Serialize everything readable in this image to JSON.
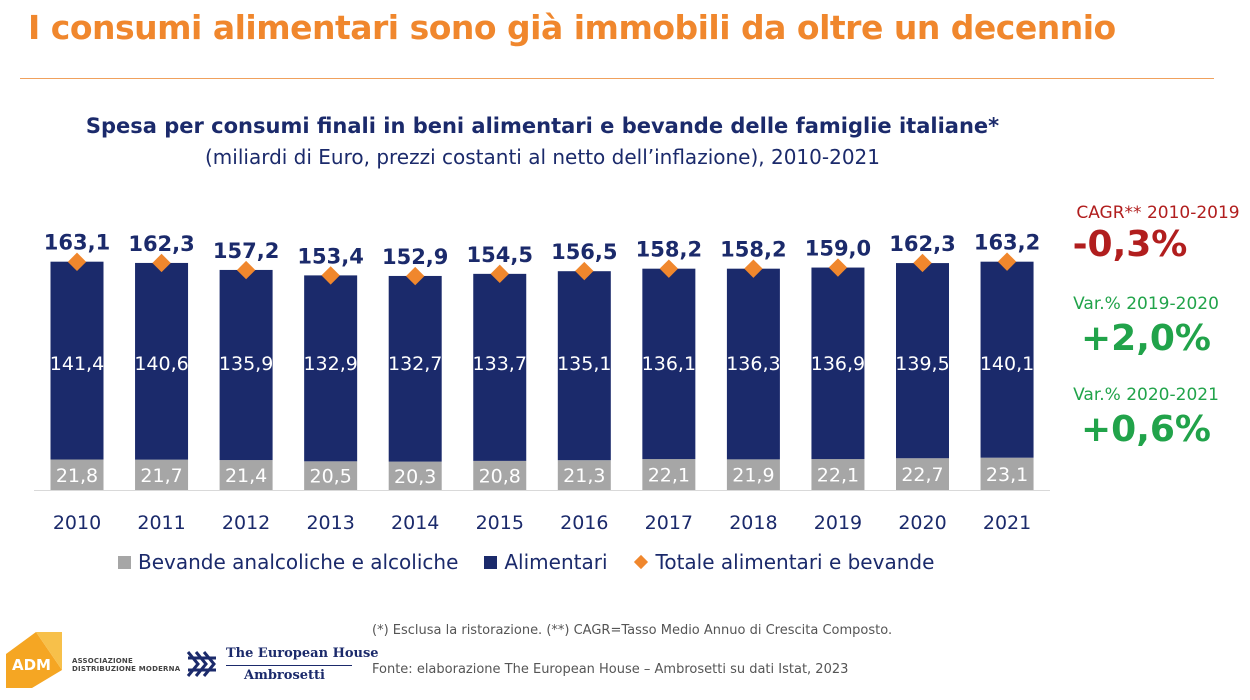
{
  "page": {
    "title": "I consumi alimentari sono già immobili da oltre un decennio"
  },
  "colors": {
    "accent_orange": "#f0872d",
    "navy": "#1b2a6b",
    "grey": "#a6a6a6",
    "cagr_red": "#b11e1e",
    "var_green": "#21a34a"
  },
  "chart_data": {
    "type": "bar",
    "stacked": true,
    "title": "Spesa per consumi finali in beni alimentari e bevande delle famiglie italiane*",
    "subtitle": "(miliardi di Euro, prezzi costanti al netto dell’inflazione), 2010-2021",
    "categories": [
      "2010",
      "2011",
      "2012",
      "2013",
      "2014",
      "2015",
      "2016",
      "2017",
      "2018",
      "2019",
      "2020",
      "2021"
    ],
    "series": [
      {
        "name": "Bevande analcoliche e alcoliche",
        "color": "#a6a6a6",
        "values": [
          21.8,
          21.7,
          21.4,
          20.5,
          20.3,
          20.8,
          21.3,
          22.1,
          21.9,
          22.1,
          22.7,
          23.1
        ],
        "labels": [
          "21,8",
          "21,7",
          "21,4",
          "20,5",
          "20,3",
          "20,8",
          "21,3",
          "22,1",
          "21,9",
          "22,1",
          "22,7",
          "23,1"
        ]
      },
      {
        "name": "Alimentari",
        "color": "#1b2a6b",
        "values": [
          141.4,
          140.6,
          135.9,
          132.9,
          132.7,
          133.7,
          135.1,
          136.1,
          136.3,
          136.9,
          139.5,
          140.1
        ],
        "labels": [
          "141,4",
          "140,6",
          "135,9",
          "132,9",
          "132,7",
          "133,7",
          "135,1",
          "136,1",
          "136,3",
          "136,9",
          "139,5",
          "140,1"
        ]
      }
    ],
    "totals": {
      "name": "Totale alimentari e bevande",
      "color": "#f0872d",
      "values": [
        163.1,
        162.3,
        157.2,
        153.4,
        152.9,
        154.5,
        156.5,
        158.2,
        158.2,
        159.0,
        162.3,
        163.2
      ],
      "labels": [
        "163,1",
        "162,3",
        "157,2",
        "153,4",
        "152,9",
        "154,5",
        "156,5",
        "158,2",
        "158,2",
        "159,0",
        "162,3",
        "163,2"
      ]
    },
    "legend": [
      "Bevande analcoliche e alcoliche",
      "Alimentari",
      "Totale alimentari e bevande"
    ],
    "legend_position": "bottom",
    "grid": false
  },
  "side_stats": {
    "cagr_label": "CAGR** 2010-2019",
    "cagr_value": "-0,3%",
    "var1_label": "Var.% 2019-2020",
    "var1_value": "+2,0%",
    "var2_label": "Var.% 2020-2021",
    "var2_value": "+0,6%"
  },
  "footer": {
    "footnote": "(*) Esclusa la ristorazione. (**) CAGR=Tasso Medio Annuo di Crescita Composto.",
    "source": "Fonte: elaborazione The European House – Ambrosetti su dati Istat, 2023",
    "adm_mark": "ADM",
    "adm_text": "ASSOCIAZIONE\nDISTRIBUZIONE MODERNA",
    "teh_name": "The European House",
    "teh_sub": "Ambrosetti"
  }
}
